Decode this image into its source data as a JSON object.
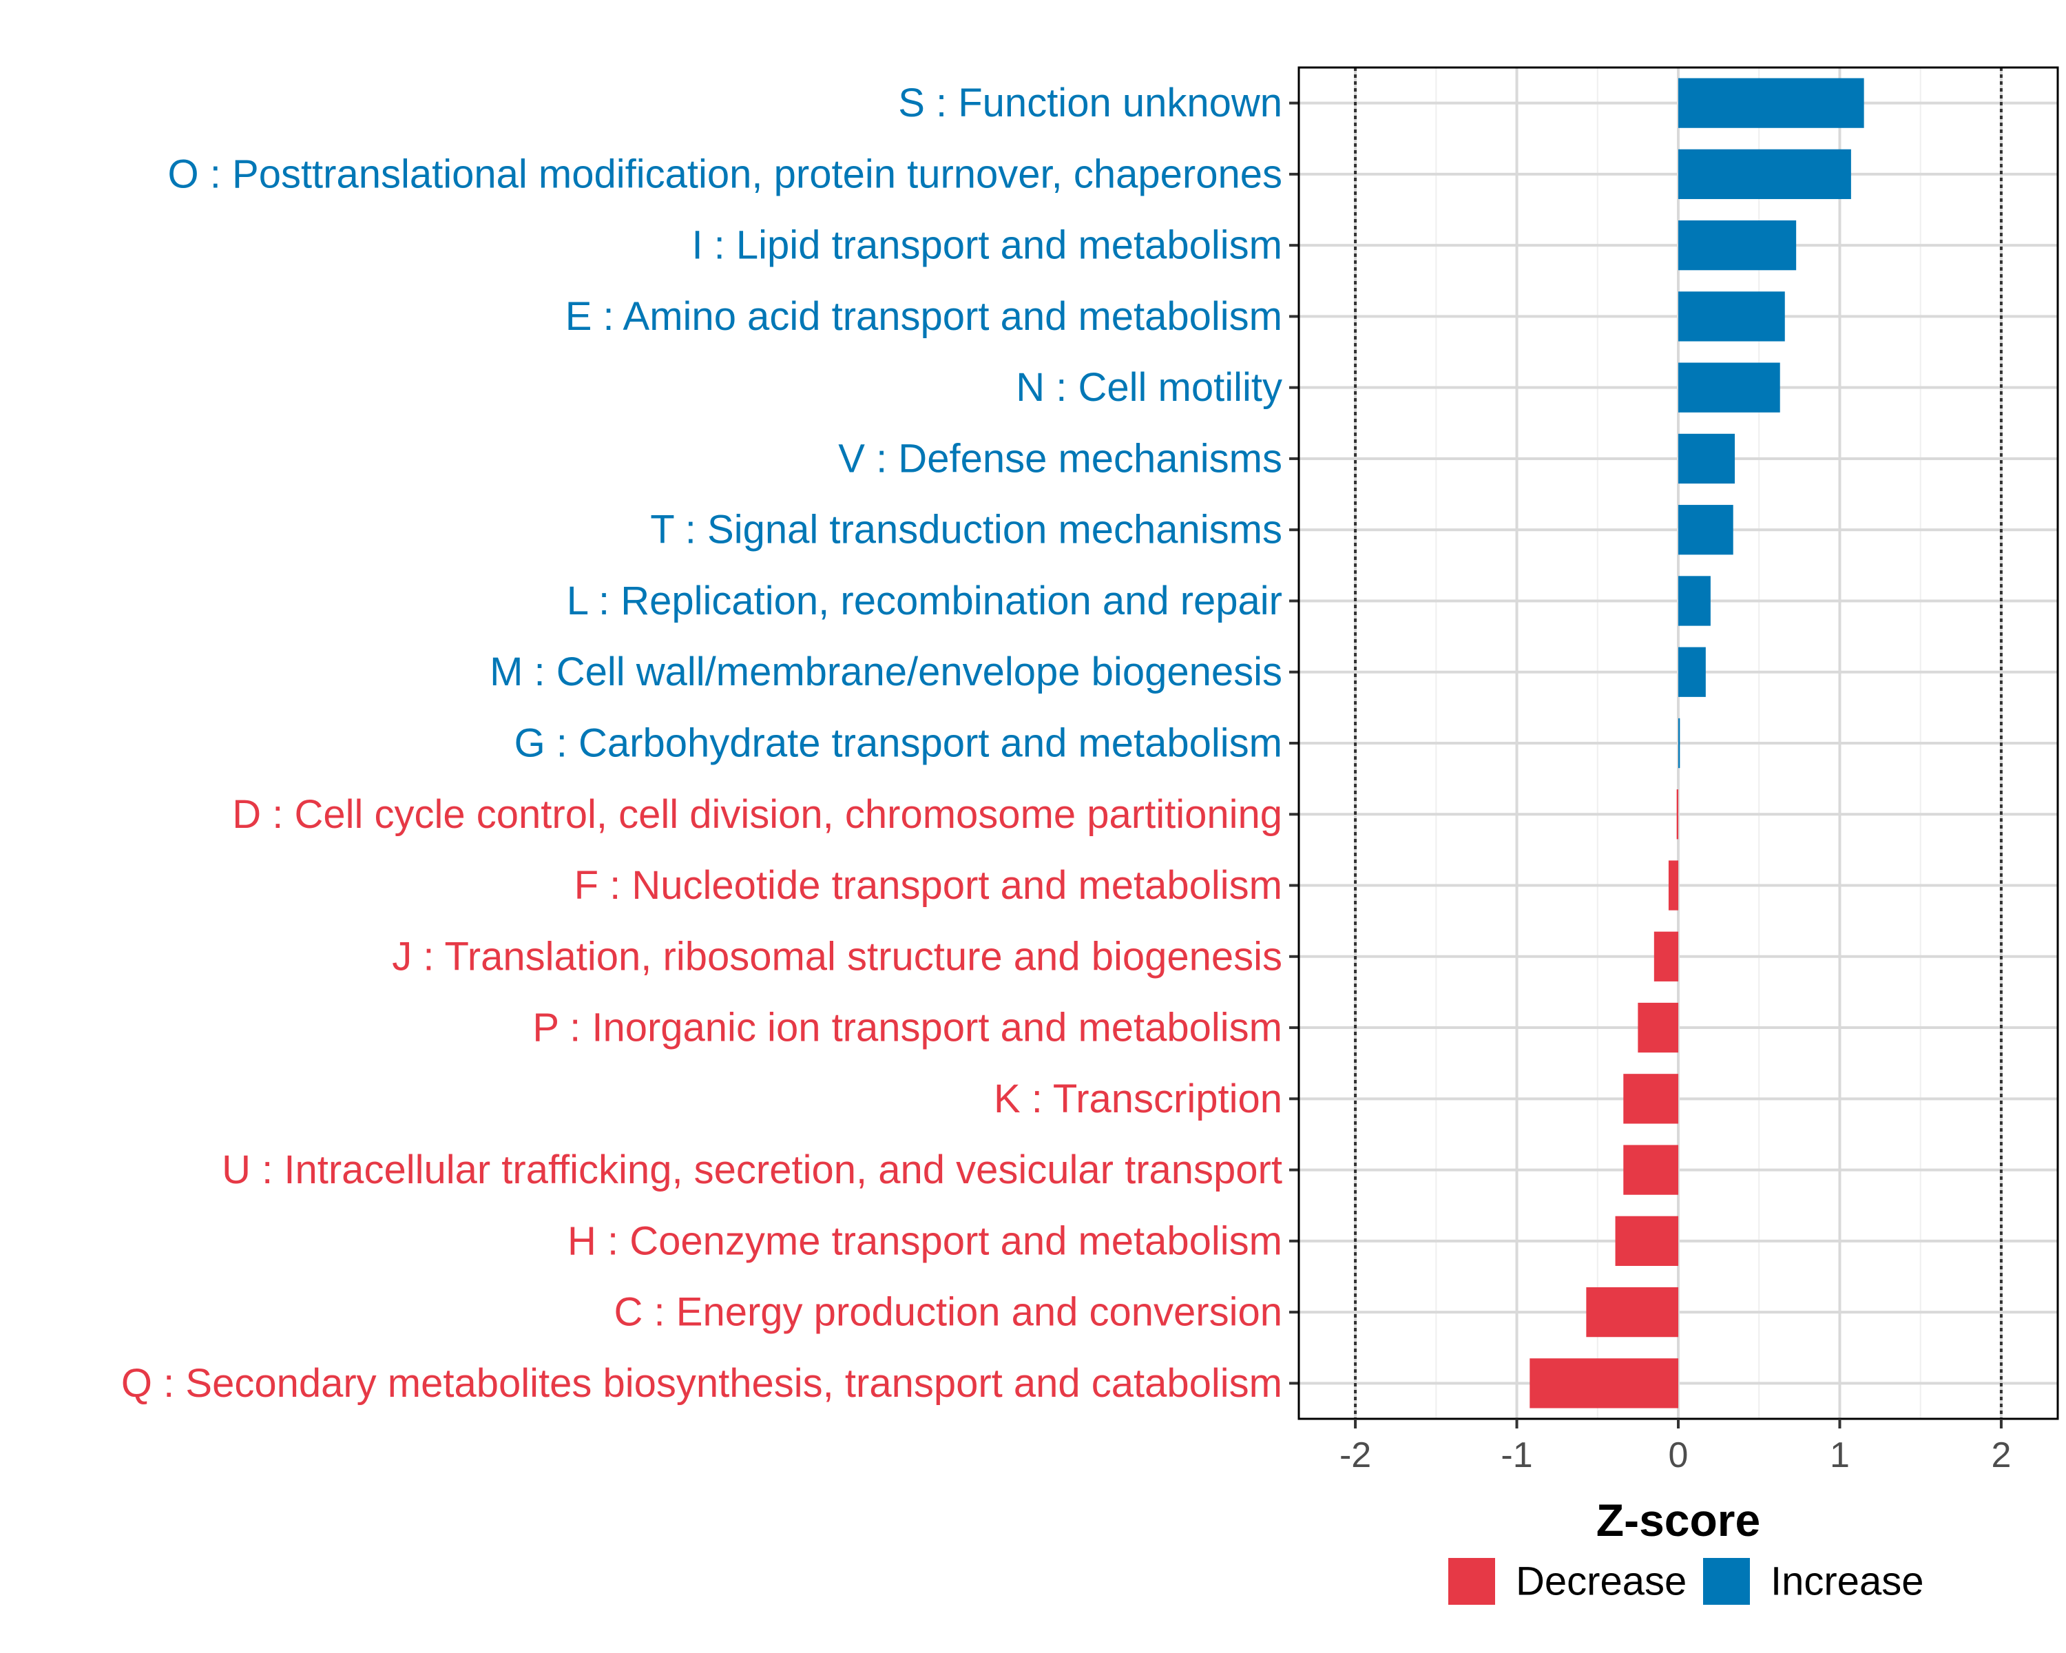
{
  "chart_data": {
    "type": "bar",
    "orientation": "horizontal",
    "title": "",
    "xlabel": "Z-score",
    "ylabel": "",
    "xlim": [
      -2.35,
      2.35
    ],
    "xticks": [
      -2,
      -1,
      0,
      1,
      2
    ],
    "xtick_labels": [
      "-2",
      "-1",
      "0",
      "1",
      "2"
    ],
    "threshold_lines": [
      -2,
      2
    ],
    "grid": true,
    "colors": {
      "Decrease": "#e63946",
      "Increase": "#0077b6"
    },
    "legend": {
      "position": "bottom",
      "entries": [
        {
          "label": "Decrease",
          "color": "#e63946"
        },
        {
          "label": "Increase",
          "color": "#0077b6"
        }
      ]
    },
    "bars": [
      {
        "label": "S : Function unknown",
        "value": 1.15,
        "direction": "Increase"
      },
      {
        "label": "O : Posttranslational modification, protein turnover, chaperones",
        "value": 1.07,
        "direction": "Increase"
      },
      {
        "label": "I : Lipid transport and metabolism",
        "value": 0.73,
        "direction": "Increase"
      },
      {
        "label": "E : Amino acid transport and metabolism",
        "value": 0.66,
        "direction": "Increase"
      },
      {
        "label": "N : Cell motility",
        "value": 0.63,
        "direction": "Increase"
      },
      {
        "label": "V : Defense mechanisms",
        "value": 0.35,
        "direction": "Increase"
      },
      {
        "label": "T : Signal transduction mechanisms",
        "value": 0.34,
        "direction": "Increase"
      },
      {
        "label": "L : Replication, recombination and repair",
        "value": 0.2,
        "direction": "Increase"
      },
      {
        "label": "M : Cell wall/membrane/envelope biogenesis",
        "value": 0.17,
        "direction": "Increase"
      },
      {
        "label": "G : Carbohydrate transport and metabolism",
        "value": 0.01,
        "direction": "Increase"
      },
      {
        "label": "D : Cell cycle control, cell division, chromosome partitioning",
        "value": -0.01,
        "direction": "Decrease"
      },
      {
        "label": "F : Nucleotide transport and metabolism",
        "value": -0.06,
        "direction": "Decrease"
      },
      {
        "label": "J : Translation, ribosomal structure and biogenesis",
        "value": -0.15,
        "direction": "Decrease"
      },
      {
        "label": "P : Inorganic ion transport and metabolism",
        "value": -0.25,
        "direction": "Decrease"
      },
      {
        "label": "K : Transcription",
        "value": -0.34,
        "direction": "Decrease"
      },
      {
        "label": "U : Intracellular trafficking, secretion, and vesicular transport",
        "value": -0.34,
        "direction": "Decrease"
      },
      {
        "label": "H : Coenzyme transport and metabolism",
        "value": -0.39,
        "direction": "Decrease"
      },
      {
        "label": "C : Energy production and conversion",
        "value": -0.57,
        "direction": "Decrease"
      },
      {
        "label": "Q : Secondary metabolites biosynthesis, transport and catabolism",
        "value": -0.92,
        "direction": "Decrease"
      }
    ]
  }
}
